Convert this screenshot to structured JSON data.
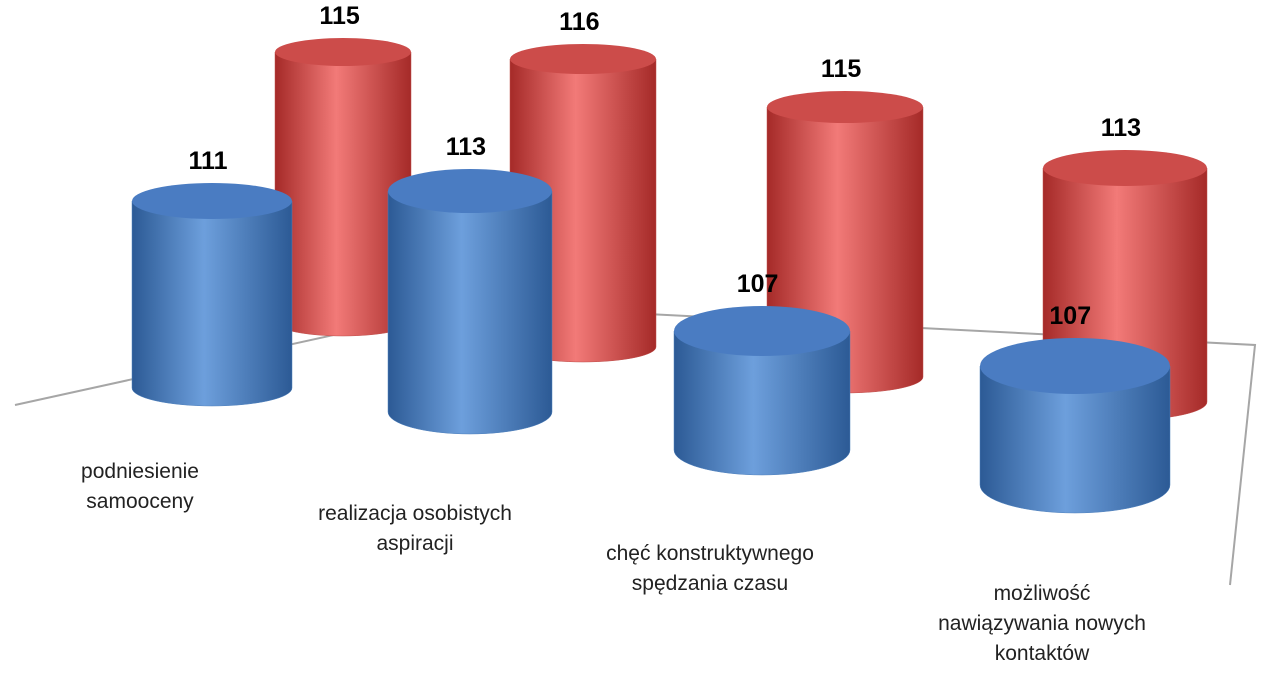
{
  "chart_data": {
    "type": "bar3d-cylinder",
    "categories": [
      [
        "podniesienie",
        "samooceny"
      ],
      [
        "realizacja osobistych",
        "aspiracji"
      ],
      [
        "chęć konstruktywnego",
        "spędzania czasu"
      ],
      [
        "możliwość",
        "nawiązywania nowych",
        "kontaktów"
      ]
    ],
    "series": [
      {
        "color": "#4f81bd",
        "values": [
          111,
          113,
          107,
          107
        ]
      },
      {
        "color": "#c0504d",
        "values": [
          115,
          116,
          115,
          113
        ]
      }
    ],
    "ylim": [
      100,
      120
    ]
  }
}
